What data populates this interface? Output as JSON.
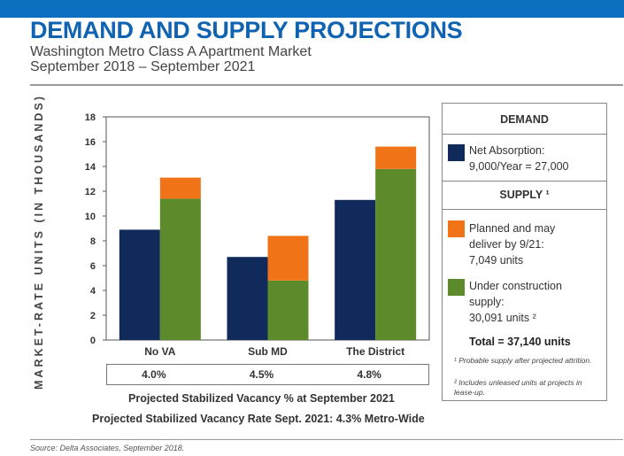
{
  "header": {
    "title": "DEMAND AND SUPPLY PROJECTIONS",
    "subtitle_line1": "Washington Metro Class A Apartment Market",
    "subtitle_line2": "September 2018 – September 2021"
  },
  "chart_data": {
    "type": "bar",
    "stacked_supply": true,
    "ylabel": "MARKET-RATE UNITS (IN THOUSANDS)",
    "ylim": [
      0,
      18
    ],
    "yticks": [
      "0",
      "2",
      "4",
      "6",
      "8",
      "10",
      "12",
      "14",
      "16",
      "18"
    ],
    "categories": [
      "No VA",
      "Sub MD",
      "The District"
    ],
    "series": [
      {
        "name": "Net Absorption",
        "group": "demand",
        "color": "#102a5c",
        "values": [
          8.9,
          6.7,
          11.3
        ]
      },
      {
        "name": "Under construction supply",
        "group": "supply",
        "color": "#5d8a2b",
        "values": [
          11.4,
          4.8,
          13.8
        ]
      },
      {
        "name": "Planned and may deliver by 9/21",
        "group": "supply",
        "color": "#f07318",
        "values": [
          1.7,
          3.6,
          1.8
        ]
      }
    ],
    "vacancy": [
      "4.0%",
      "4.5%",
      "4.8%"
    ]
  },
  "captions": {
    "vacancy_title": "Projected Stabilized Vacancy % at September 2021",
    "metro_wide": "Projected Stabilized Vacancy Rate Sept. 2021: 4.3% Metro-Wide"
  },
  "legend": {
    "demand_header": "DEMAND",
    "demand_item_line1": "Net Absorption:",
    "demand_item_line2": "9,000/Year = 27,000",
    "supply_header": "SUPPLY ¹",
    "planned_line1": "Planned and may",
    "planned_line2": "deliver by 9/21:",
    "planned_line3": "7,049 units",
    "construction_line1": "Under construction",
    "construction_line2": "supply:",
    "construction_line3": "30,091 units ²",
    "total": "Total = 37,140 units",
    "footnote1": "¹ Probable supply after projected attrition.",
    "footnote2": "² Includes unleased units at projects in lease-up.",
    "colors": {
      "demand": "#102a5c",
      "planned": "#f07318",
      "construction": "#5d8a2b"
    }
  },
  "source": "Source: Delta Associates, September 2018."
}
